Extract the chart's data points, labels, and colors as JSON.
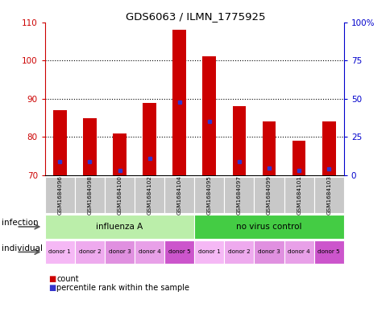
{
  "title": "GDS6063 / ILMN_1775925",
  "samples": [
    "GSM1684096",
    "GSM1684098",
    "GSM1684100",
    "GSM1684102",
    "GSM1684104",
    "GSM1684095",
    "GSM1684097",
    "GSM1684099",
    "GSM1684101",
    "GSM1684103"
  ],
  "count_values": [
    87,
    85,
    81,
    89,
    108,
    101,
    88,
    84,
    79,
    84
  ],
  "percentile_values": [
    9,
    9,
    3,
    11,
    48,
    35,
    9,
    5,
    3,
    4
  ],
  "ylim_left": [
    70,
    110
  ],
  "ylim_right": [
    0,
    100
  ],
  "yticks_left": [
    70,
    80,
    90,
    100,
    110
  ],
  "yticks_right": [
    0,
    25,
    50,
    75,
    100
  ],
  "ytick_labels_right": [
    "0",
    "25",
    "50",
    "75",
    "100%"
  ],
  "bar_color": "#cc0000",
  "marker_color": "#3333cc",
  "bar_width": 0.45,
  "infection_groups": [
    {
      "label": "influenza A",
      "start": 0,
      "end": 5,
      "color": "#aaeea a"
    },
    {
      "label": "no virus control",
      "start": 5,
      "end": 10,
      "color": "#44cc44"
    }
  ],
  "individual_labels": [
    "donor 1",
    "donor 2",
    "donor 3",
    "donor 4",
    "donor 5",
    "donor 1",
    "donor 2",
    "donor 3",
    "donor 4",
    "donor 5"
  ],
  "individual_colors": [
    "#f5b8f5",
    "#eeaaee",
    "#e090e0",
    "#e8a0e8",
    "#cc55cc",
    "#f5b8f5",
    "#eeaaee",
    "#e090e0",
    "#e8a0e8",
    "#cc55cc"
  ],
  "infection_label": "infection",
  "individual_label": "individual",
  "legend_count_label": "count",
  "legend_percentile_label": "percentile rank within the sample",
  "left_tick_color": "#cc0000",
  "right_tick_color": "#0000cc",
  "sample_box_color": "#c8c8c8",
  "inf_color_1": "#bbeeaa",
  "inf_color_2": "#44cc44"
}
